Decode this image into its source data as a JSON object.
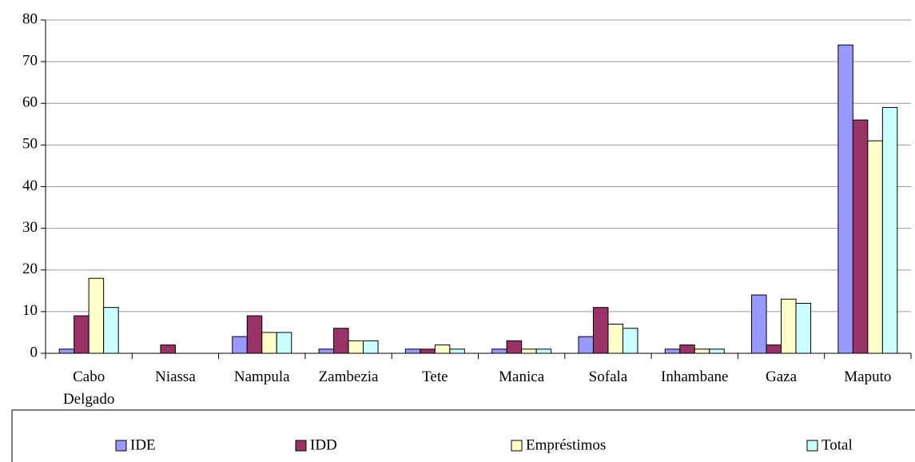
{
  "chart_data": {
    "type": "bar",
    "categories": [
      "Cabo Delgado",
      "Niassa",
      "Nampula",
      "Zambezia",
      "Tete",
      "Manica",
      "Sofala",
      "Inhambane",
      "Gaza",
      "Maputo"
    ],
    "series": [
      {
        "name": "IDE",
        "color": "#9999ff",
        "values": [
          1,
          0,
          4,
          1,
          1,
          1,
          4,
          1,
          14,
          74
        ]
      },
      {
        "name": "IDD",
        "color": "#993366",
        "values": [
          9,
          2,
          9,
          6,
          1,
          3,
          11,
          2,
          2,
          56
        ]
      },
      {
        "name": "Empréstimos",
        "color": "#ffffcc",
        "values": [
          18,
          0,
          5,
          3,
          2,
          1,
          7,
          1,
          13,
          51
        ]
      },
      {
        "name": "Total",
        "color": "#ccffff",
        "values": [
          11,
          0,
          5,
          3,
          1,
          1,
          6,
          1,
          12,
          59
        ]
      }
    ],
    "ylim": [
      0,
      80
    ],
    "yticks": [
      0,
      10,
      20,
      30,
      40,
      50,
      60,
      70,
      80
    ],
    "grid": true,
    "legend": "bottom"
  }
}
